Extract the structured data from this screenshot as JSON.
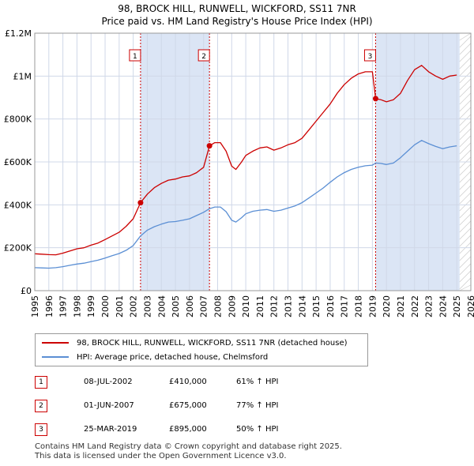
{
  "header": {
    "title_line1": "98, BROCK HILL, RUNWELL, WICKFORD, SS11 7NR",
    "title_line2": "Price paid vs. HM Land Registry's House Price Index (HPI)"
  },
  "colors": {
    "price_line": "#cc0000",
    "hpi_line": "#5b8fd4",
    "shade": "#dbe5f5",
    "grid": "#d0d8e8",
    "vline": "#cc0000"
  },
  "chart_data": {
    "type": "line",
    "title": "98, BROCK HILL, RUNWELL, WICKFORD, SS11 7NR — Price paid vs. HM Land Registry's House Price Index (HPI)",
    "xlim": [
      1995,
      2026
    ],
    "ylim": [
      0,
      1200000
    ],
    "yticks": [
      {
        "value": 0,
        "label": "£0"
      },
      {
        "value": 200000,
        "label": "£200K"
      },
      {
        "value": 400000,
        "label": "£400K"
      },
      {
        "value": 600000,
        "label": "£600K"
      },
      {
        "value": 800000,
        "label": "£800K"
      },
      {
        "value": 1000000,
        "label": "£1M"
      },
      {
        "value": 1200000,
        "label": "£1.2M"
      }
    ],
    "xticks": [
      "1995",
      "1996",
      "1997",
      "1998",
      "1999",
      "2000",
      "2001",
      "2002",
      "2003",
      "2004",
      "2005",
      "2006",
      "2007",
      "2008",
      "2009",
      "2010",
      "2011",
      "2012",
      "2013",
      "2014",
      "2015",
      "2016",
      "2017",
      "2018",
      "2019",
      "2020",
      "2021",
      "2022",
      "2023",
      "2024",
      "2025",
      "2026"
    ],
    "shaded_periods": [
      [
        2002.52,
        2007.42
      ],
      [
        2019.23,
        2025.2
      ]
    ],
    "forecast_start": 2025.2,
    "series": [
      {
        "name": "98, BROCK HILL, RUNWELL, WICKFORD, SS11 7NR (detached house)",
        "color": "#cc0000",
        "points": [
          [
            1995.0,
            172000
          ],
          [
            1995.5,
            170000
          ],
          [
            1996.0,
            168000
          ],
          [
            1996.5,
            167000
          ],
          [
            1997.0,
            175000
          ],
          [
            1997.5,
            185000
          ],
          [
            1998.0,
            195000
          ],
          [
            1998.5,
            200000
          ],
          [
            1999.0,
            212000
          ],
          [
            1999.5,
            222000
          ],
          [
            2000.0,
            238000
          ],
          [
            2000.5,
            255000
          ],
          [
            2001.0,
            272000
          ],
          [
            2001.5,
            300000
          ],
          [
            2002.0,
            335000
          ],
          [
            2002.52,
            410000
          ],
          [
            2003.0,
            450000
          ],
          [
            2003.5,
            480000
          ],
          [
            2004.0,
            500000
          ],
          [
            2004.5,
            515000
          ],
          [
            2005.0,
            520000
          ],
          [
            2005.5,
            530000
          ],
          [
            2006.0,
            535000
          ],
          [
            2006.5,
            550000
          ],
          [
            2007.0,
            575000
          ],
          [
            2007.42,
            675000
          ],
          [
            2007.8,
            690000
          ],
          [
            2008.2,
            690000
          ],
          [
            2008.6,
            650000
          ],
          [
            2009.0,
            580000
          ],
          [
            2009.3,
            565000
          ],
          [
            2009.7,
            600000
          ],
          [
            2010.0,
            630000
          ],
          [
            2010.5,
            650000
          ],
          [
            2011.0,
            665000
          ],
          [
            2011.5,
            670000
          ],
          [
            2012.0,
            655000
          ],
          [
            2012.5,
            665000
          ],
          [
            2013.0,
            680000
          ],
          [
            2013.5,
            690000
          ],
          [
            2014.0,
            710000
          ],
          [
            2014.5,
            750000
          ],
          [
            2015.0,
            790000
          ],
          [
            2015.5,
            830000
          ],
          [
            2016.0,
            870000
          ],
          [
            2016.5,
            920000
          ],
          [
            2017.0,
            960000
          ],
          [
            2017.5,
            990000
          ],
          [
            2018.0,
            1010000
          ],
          [
            2018.5,
            1020000
          ],
          [
            2019.0,
            1020000
          ],
          [
            2019.23,
            895000
          ],
          [
            2019.6,
            890000
          ],
          [
            2020.0,
            880000
          ],
          [
            2020.5,
            890000
          ],
          [
            2021.0,
            920000
          ],
          [
            2021.5,
            980000
          ],
          [
            2022.0,
            1030000
          ],
          [
            2022.5,
            1050000
          ],
          [
            2023.0,
            1020000
          ],
          [
            2023.5,
            1000000
          ],
          [
            2024.0,
            985000
          ],
          [
            2024.5,
            1000000
          ],
          [
            2025.0,
            1005000
          ]
        ]
      },
      {
        "name": "HPI: Average price, detached house, Chelmsford",
        "color": "#5b8fd4",
        "points": [
          [
            1995.0,
            107000
          ],
          [
            1995.5,
            106000
          ],
          [
            1996.0,
            105000
          ],
          [
            1996.5,
            107000
          ],
          [
            1997.0,
            112000
          ],
          [
            1997.5,
            118000
          ],
          [
            1998.0,
            124000
          ],
          [
            1998.5,
            128000
          ],
          [
            1999.0,
            135000
          ],
          [
            1999.5,
            142000
          ],
          [
            2000.0,
            152000
          ],
          [
            2000.5,
            163000
          ],
          [
            2001.0,
            173000
          ],
          [
            2001.5,
            188000
          ],
          [
            2002.0,
            210000
          ],
          [
            2002.52,
            255000
          ],
          [
            2003.0,
            282000
          ],
          [
            2003.5,
            298000
          ],
          [
            2004.0,
            310000
          ],
          [
            2004.5,
            320000
          ],
          [
            2005.0,
            322000
          ],
          [
            2005.5,
            328000
          ],
          [
            2006.0,
            335000
          ],
          [
            2006.5,
            350000
          ],
          [
            2007.0,
            365000
          ],
          [
            2007.42,
            382000
          ],
          [
            2007.8,
            390000
          ],
          [
            2008.2,
            390000
          ],
          [
            2008.6,
            368000
          ],
          [
            2009.0,
            328000
          ],
          [
            2009.3,
            320000
          ],
          [
            2009.7,
            340000
          ],
          [
            2010.0,
            358000
          ],
          [
            2010.5,
            370000
          ],
          [
            2011.0,
            375000
          ],
          [
            2011.5,
            378000
          ],
          [
            2012.0,
            370000
          ],
          [
            2012.5,
            375000
          ],
          [
            2013.0,
            385000
          ],
          [
            2013.5,
            395000
          ],
          [
            2014.0,
            410000
          ],
          [
            2014.5,
            432000
          ],
          [
            2015.0,
            455000
          ],
          [
            2015.5,
            478000
          ],
          [
            2016.0,
            505000
          ],
          [
            2016.5,
            530000
          ],
          [
            2017.0,
            550000
          ],
          [
            2017.5,
            565000
          ],
          [
            2018.0,
            575000
          ],
          [
            2018.5,
            582000
          ],
          [
            2019.0,
            585000
          ],
          [
            2019.23,
            595000
          ],
          [
            2019.6,
            593000
          ],
          [
            2020.0,
            588000
          ],
          [
            2020.5,
            595000
          ],
          [
            2021.0,
            620000
          ],
          [
            2021.5,
            650000
          ],
          [
            2022.0,
            680000
          ],
          [
            2022.5,
            700000
          ],
          [
            2023.0,
            685000
          ],
          [
            2023.5,
            672000
          ],
          [
            2024.0,
            662000
          ],
          [
            2024.5,
            670000
          ],
          [
            2025.0,
            675000
          ]
        ]
      }
    ],
    "sales": [
      {
        "label": "1",
        "x": 2002.52,
        "y": 410000
      },
      {
        "label": "2",
        "x": 2007.42,
        "y": 675000
      },
      {
        "label": "3",
        "x": 2019.23,
        "y": 895000
      }
    ]
  },
  "legend": {
    "items": [
      {
        "label": "98, BROCK HILL, RUNWELL, WICKFORD, SS11 7NR (detached house)"
      },
      {
        "label": "HPI: Average price, detached house, Chelmsford"
      }
    ]
  },
  "transactions": [
    {
      "num": "1",
      "date": "08-JUL-2002",
      "price": "£410,000",
      "hpi": "61% ↑ HPI"
    },
    {
      "num": "2",
      "date": "01-JUN-2007",
      "price": "£675,000",
      "hpi": "77% ↑ HPI"
    },
    {
      "num": "3",
      "date": "25-MAR-2019",
      "price": "£895,000",
      "hpi": "50% ↑ HPI"
    }
  ],
  "footer": {
    "line1": "Contains HM Land Registry data © Crown copyright and database right 2025.",
    "line2": "This data is licensed under the Open Government Licence v3.0."
  }
}
